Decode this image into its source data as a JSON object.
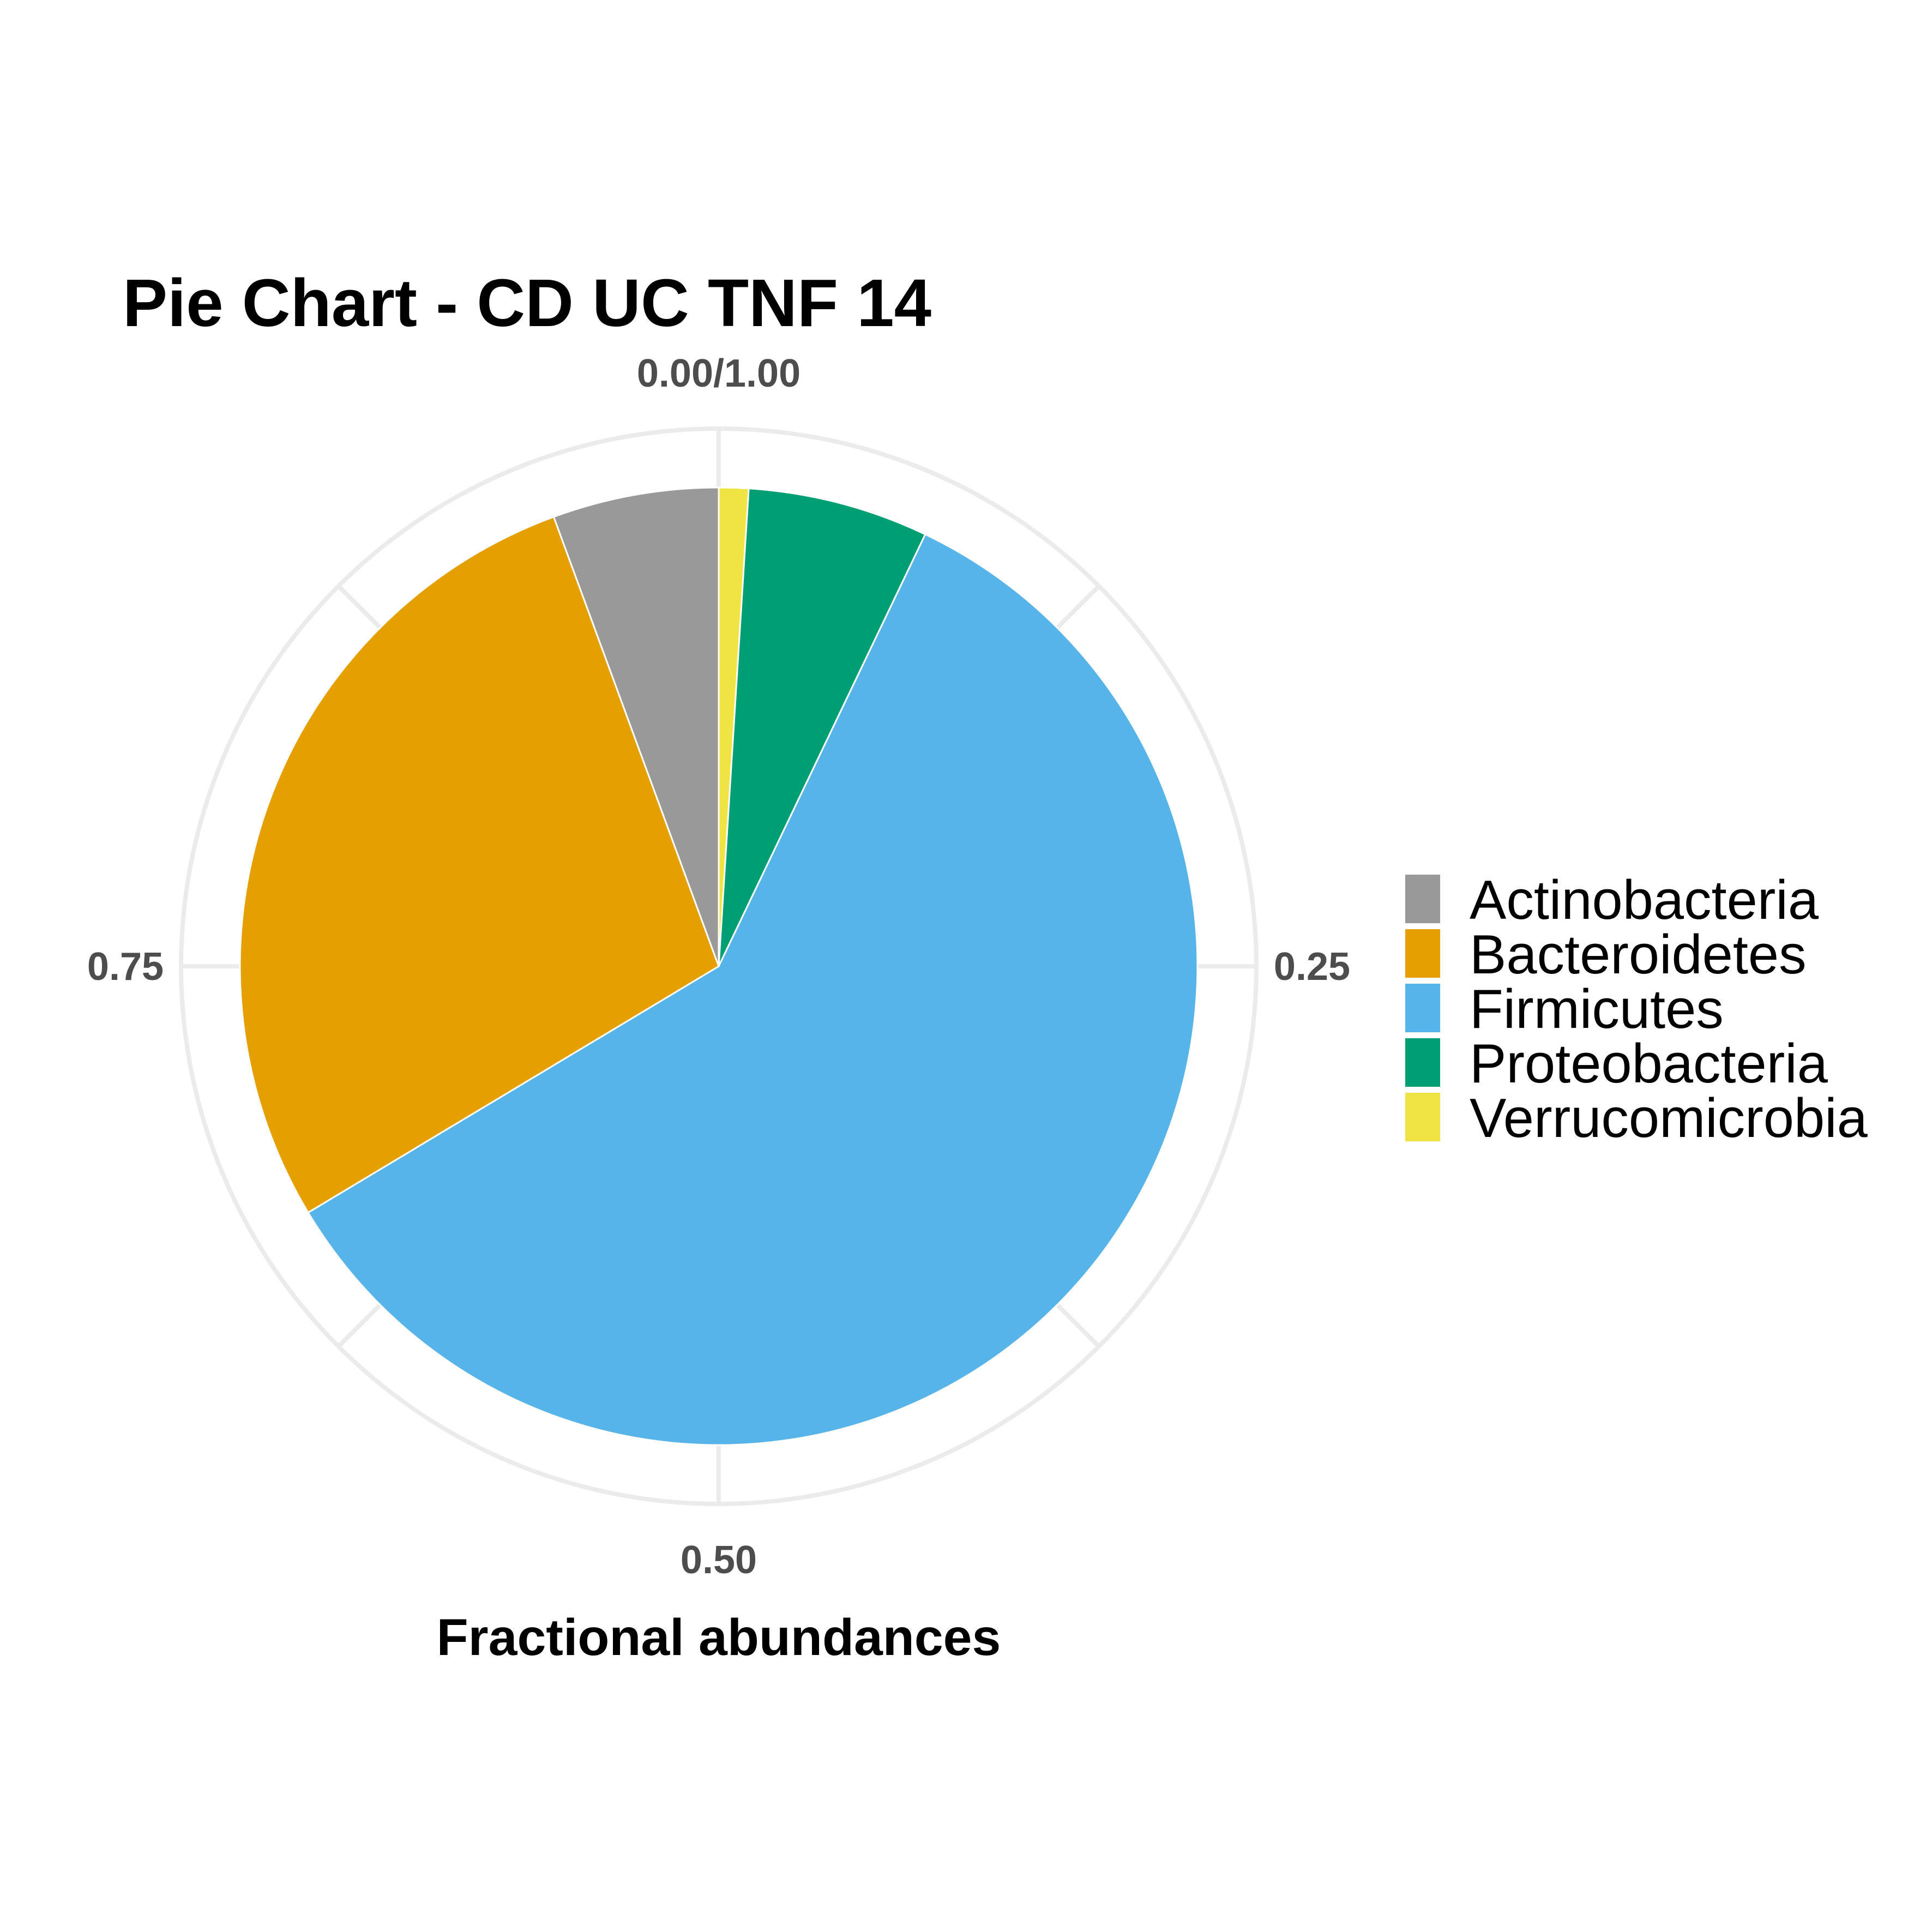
{
  "chart_data": {
    "type": "pie",
    "title": "Pie Chart - CD UC TNF 14",
    "xlabel": "Fractional abundances",
    "ylabel": "",
    "ticks": [
      {
        "value": 0.0,
        "label": "0.00/1.00"
      },
      {
        "value": 0.25,
        "label": "0.25"
      },
      {
        "value": 0.5,
        "label": "0.50"
      },
      {
        "value": 0.75,
        "label": "0.75"
      }
    ],
    "slices": [
      {
        "label": "Verrucomicrobia",
        "value": 0.01,
        "color": "#F0E442"
      },
      {
        "label": "Proteobacteria",
        "value": 0.061,
        "color": "#009E73"
      },
      {
        "label": "Firmicutes",
        "value": 0.593,
        "color": "#56B4E9"
      },
      {
        "label": "Bacteroidetes",
        "value": 0.28,
        "color": "#E69F00"
      },
      {
        "label": "Actinobacteria",
        "value": 0.056,
        "color": "#999999"
      }
    ],
    "legend": {
      "position": "right",
      "entries": [
        {
          "label": "Actinobacteria",
          "color": "#999999"
        },
        {
          "label": "Bacteroidetes",
          "color": "#E69F00"
        },
        {
          "label": "Firmicutes",
          "color": "#56B4E9"
        },
        {
          "label": "Proteobacteria",
          "color": "#009E73"
        },
        {
          "label": "Verrucomicrobia",
          "color": "#F0E442"
        }
      ]
    },
    "grid": true,
    "gridColor": "#EBEBEB"
  }
}
